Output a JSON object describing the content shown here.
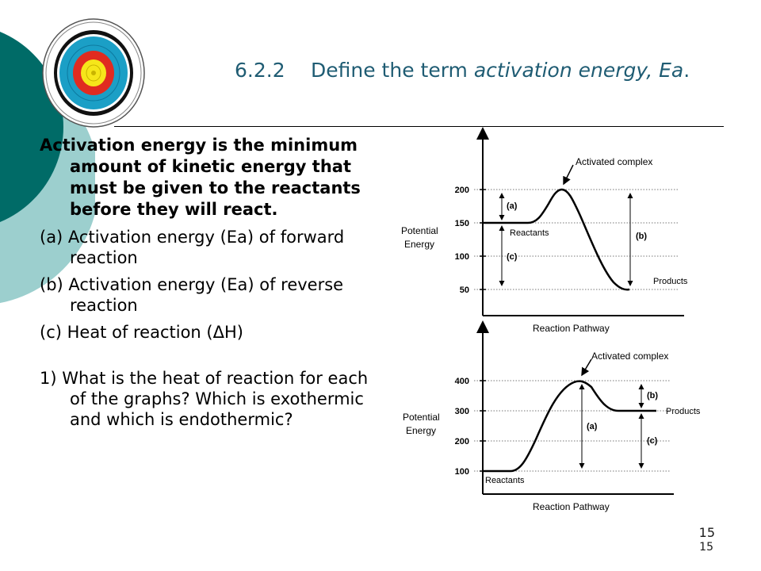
{
  "slide": {
    "title_number": "6.2.2",
    "title_text": "Define the term ",
    "title_emphasis": "activation energy, Ea",
    "title_end": ".",
    "page_number_main": "15",
    "page_number_small": "15",
    "colors": {
      "teal_dark": "#006b67",
      "teal_light": "#9ccfce",
      "title": "#1f5c73"
    },
    "paragraphs": [
      "Activation energy is the minimum amount of kinetic energy that must be given to the reactants before they will react.",
      "(a) Activation energy (Ea) of forward reaction",
      "(b) Activation energy (Ea) of reverse reaction",
      "(c) Heat of reaction (ΔH)",
      "1) What is the heat of reaction for each of the graphs? Which is exothermic and which is endothermic?"
    ]
  },
  "graph1": {
    "ylabel_line1": "Potential",
    "ylabel_line2": "Energy",
    "xlabel": "Reaction Pathway",
    "ticks": [
      "200",
      "150",
      "100",
      "50"
    ],
    "activated_label": "Activated complex",
    "reactants_label": "Reactants",
    "products_label": "Products",
    "label_a": "(a)",
    "label_b": "(b)",
    "label_c": "(c)"
  },
  "graph2": {
    "ylabel_line1": "Potential",
    "ylabel_line2": "Energy",
    "xlabel": "Reaction Pathway",
    "ticks": [
      "400",
      "300",
      "200",
      "100"
    ],
    "activated_label": "Activated complex",
    "reactants_label": "Reactants",
    "products_label": "Products",
    "label_a": "(a)",
    "label_b": "(b)",
    "label_c": "(c)"
  }
}
